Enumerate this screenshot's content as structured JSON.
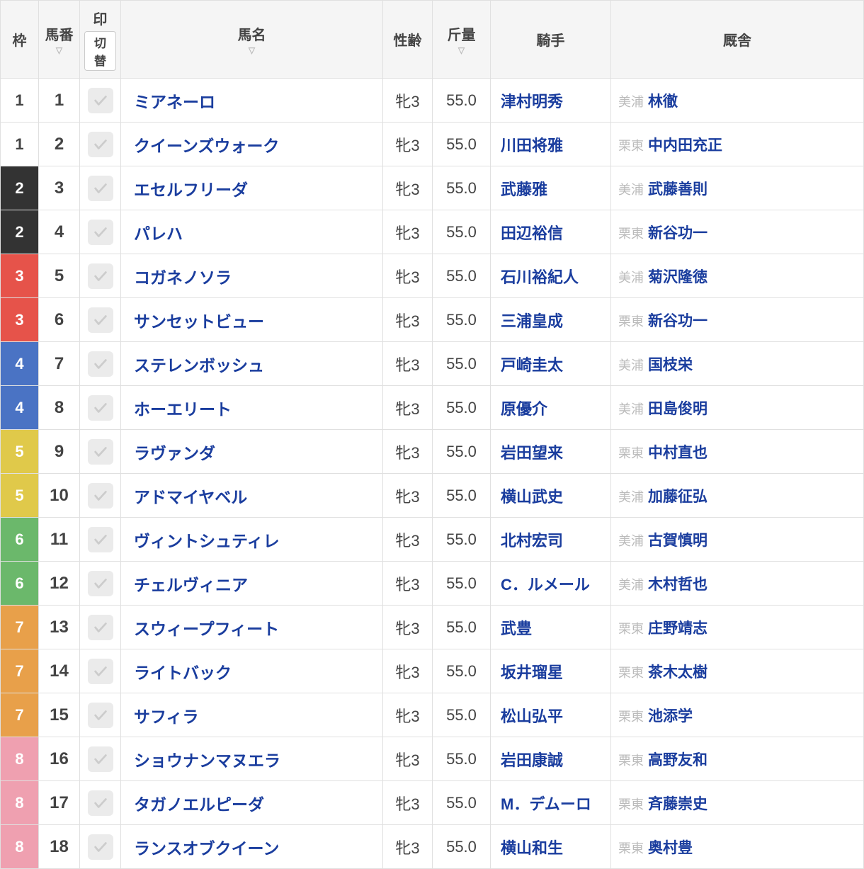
{
  "headers": {
    "bracket": "枠",
    "number": "馬番",
    "mark": "印",
    "mark_toggle": "切替",
    "name": "馬名",
    "sex_age": "性齢",
    "weight": "斤量",
    "jockey": "騎手",
    "stable": "厩舎"
  },
  "bracket_colors": {
    "1": "bracket-white",
    "2": "bracket-black",
    "3": "bracket-red",
    "4": "bracket-blue",
    "5": "bracket-yellow",
    "6": "bracket-green",
    "7": "bracket-orange",
    "8": "bracket-pink"
  },
  "rows": [
    {
      "bracket": "1",
      "number": "1",
      "name": "ミアネーロ",
      "sex_age": "牝3",
      "weight": "55.0",
      "jockey": "津村明秀",
      "region": "美浦",
      "trainer": "林徹"
    },
    {
      "bracket": "1",
      "number": "2",
      "name": "クイーンズウォーク",
      "sex_age": "牝3",
      "weight": "55.0",
      "jockey": "川田将雅",
      "region": "栗東",
      "trainer": "中内田充正"
    },
    {
      "bracket": "2",
      "number": "3",
      "name": "エセルフリーダ",
      "sex_age": "牝3",
      "weight": "55.0",
      "jockey": "武藤雅",
      "region": "美浦",
      "trainer": "武藤善則"
    },
    {
      "bracket": "2",
      "number": "4",
      "name": "パレハ",
      "sex_age": "牝3",
      "weight": "55.0",
      "jockey": "田辺裕信",
      "region": "栗東",
      "trainer": "新谷功一"
    },
    {
      "bracket": "3",
      "number": "5",
      "name": "コガネノソラ",
      "sex_age": "牝3",
      "weight": "55.0",
      "jockey": "石川裕紀人",
      "region": "美浦",
      "trainer": "菊沢隆徳"
    },
    {
      "bracket": "3",
      "number": "6",
      "name": "サンセットビュー",
      "sex_age": "牝3",
      "weight": "55.0",
      "jockey": "三浦皇成",
      "region": "栗東",
      "trainer": "新谷功一"
    },
    {
      "bracket": "4",
      "number": "7",
      "name": "ステレンボッシュ",
      "sex_age": "牝3",
      "weight": "55.0",
      "jockey": "戸崎圭太",
      "region": "美浦",
      "trainer": "国枝栄"
    },
    {
      "bracket": "4",
      "number": "8",
      "name": "ホーエリート",
      "sex_age": "牝3",
      "weight": "55.0",
      "jockey": "原優介",
      "region": "美浦",
      "trainer": "田島俊明"
    },
    {
      "bracket": "5",
      "number": "9",
      "name": "ラヴァンダ",
      "sex_age": "牝3",
      "weight": "55.0",
      "jockey": "岩田望来",
      "region": "栗東",
      "trainer": "中村直也"
    },
    {
      "bracket": "5",
      "number": "10",
      "name": "アドマイヤベル",
      "sex_age": "牝3",
      "weight": "55.0",
      "jockey": "横山武史",
      "region": "美浦",
      "trainer": "加藤征弘"
    },
    {
      "bracket": "6",
      "number": "11",
      "name": "ヴィントシュティレ",
      "sex_age": "牝3",
      "weight": "55.0",
      "jockey": "北村宏司",
      "region": "美浦",
      "trainer": "古賀慎明"
    },
    {
      "bracket": "6",
      "number": "12",
      "name": "チェルヴィニア",
      "sex_age": "牝3",
      "weight": "55.0",
      "jockey": "C．ルメール",
      "region": "美浦",
      "trainer": "木村哲也"
    },
    {
      "bracket": "7",
      "number": "13",
      "name": "スウィープフィート",
      "sex_age": "牝3",
      "weight": "55.0",
      "jockey": "武豊",
      "region": "栗東",
      "trainer": "庄野靖志"
    },
    {
      "bracket": "7",
      "number": "14",
      "name": "ライトバック",
      "sex_age": "牝3",
      "weight": "55.0",
      "jockey": "坂井瑠星",
      "region": "栗東",
      "trainer": "茶木太樹"
    },
    {
      "bracket": "7",
      "number": "15",
      "name": "サフィラ",
      "sex_age": "牝3",
      "weight": "55.0",
      "jockey": "松山弘平",
      "region": "栗東",
      "trainer": "池添学"
    },
    {
      "bracket": "8",
      "number": "16",
      "name": "ショウナンマヌエラ",
      "sex_age": "牝3",
      "weight": "55.0",
      "jockey": "岩田康誠",
      "region": "栗東",
      "trainer": "高野友和"
    },
    {
      "bracket": "8",
      "number": "17",
      "name": "タガノエルピーダ",
      "sex_age": "牝3",
      "weight": "55.0",
      "jockey": "M．デムーロ",
      "region": "栗東",
      "trainer": "斉藤崇史"
    },
    {
      "bracket": "8",
      "number": "18",
      "name": "ランスオブクイーン",
      "sex_age": "牝3",
      "weight": "55.0",
      "jockey": "横山和生",
      "region": "栗東",
      "trainer": "奥村豊"
    }
  ]
}
